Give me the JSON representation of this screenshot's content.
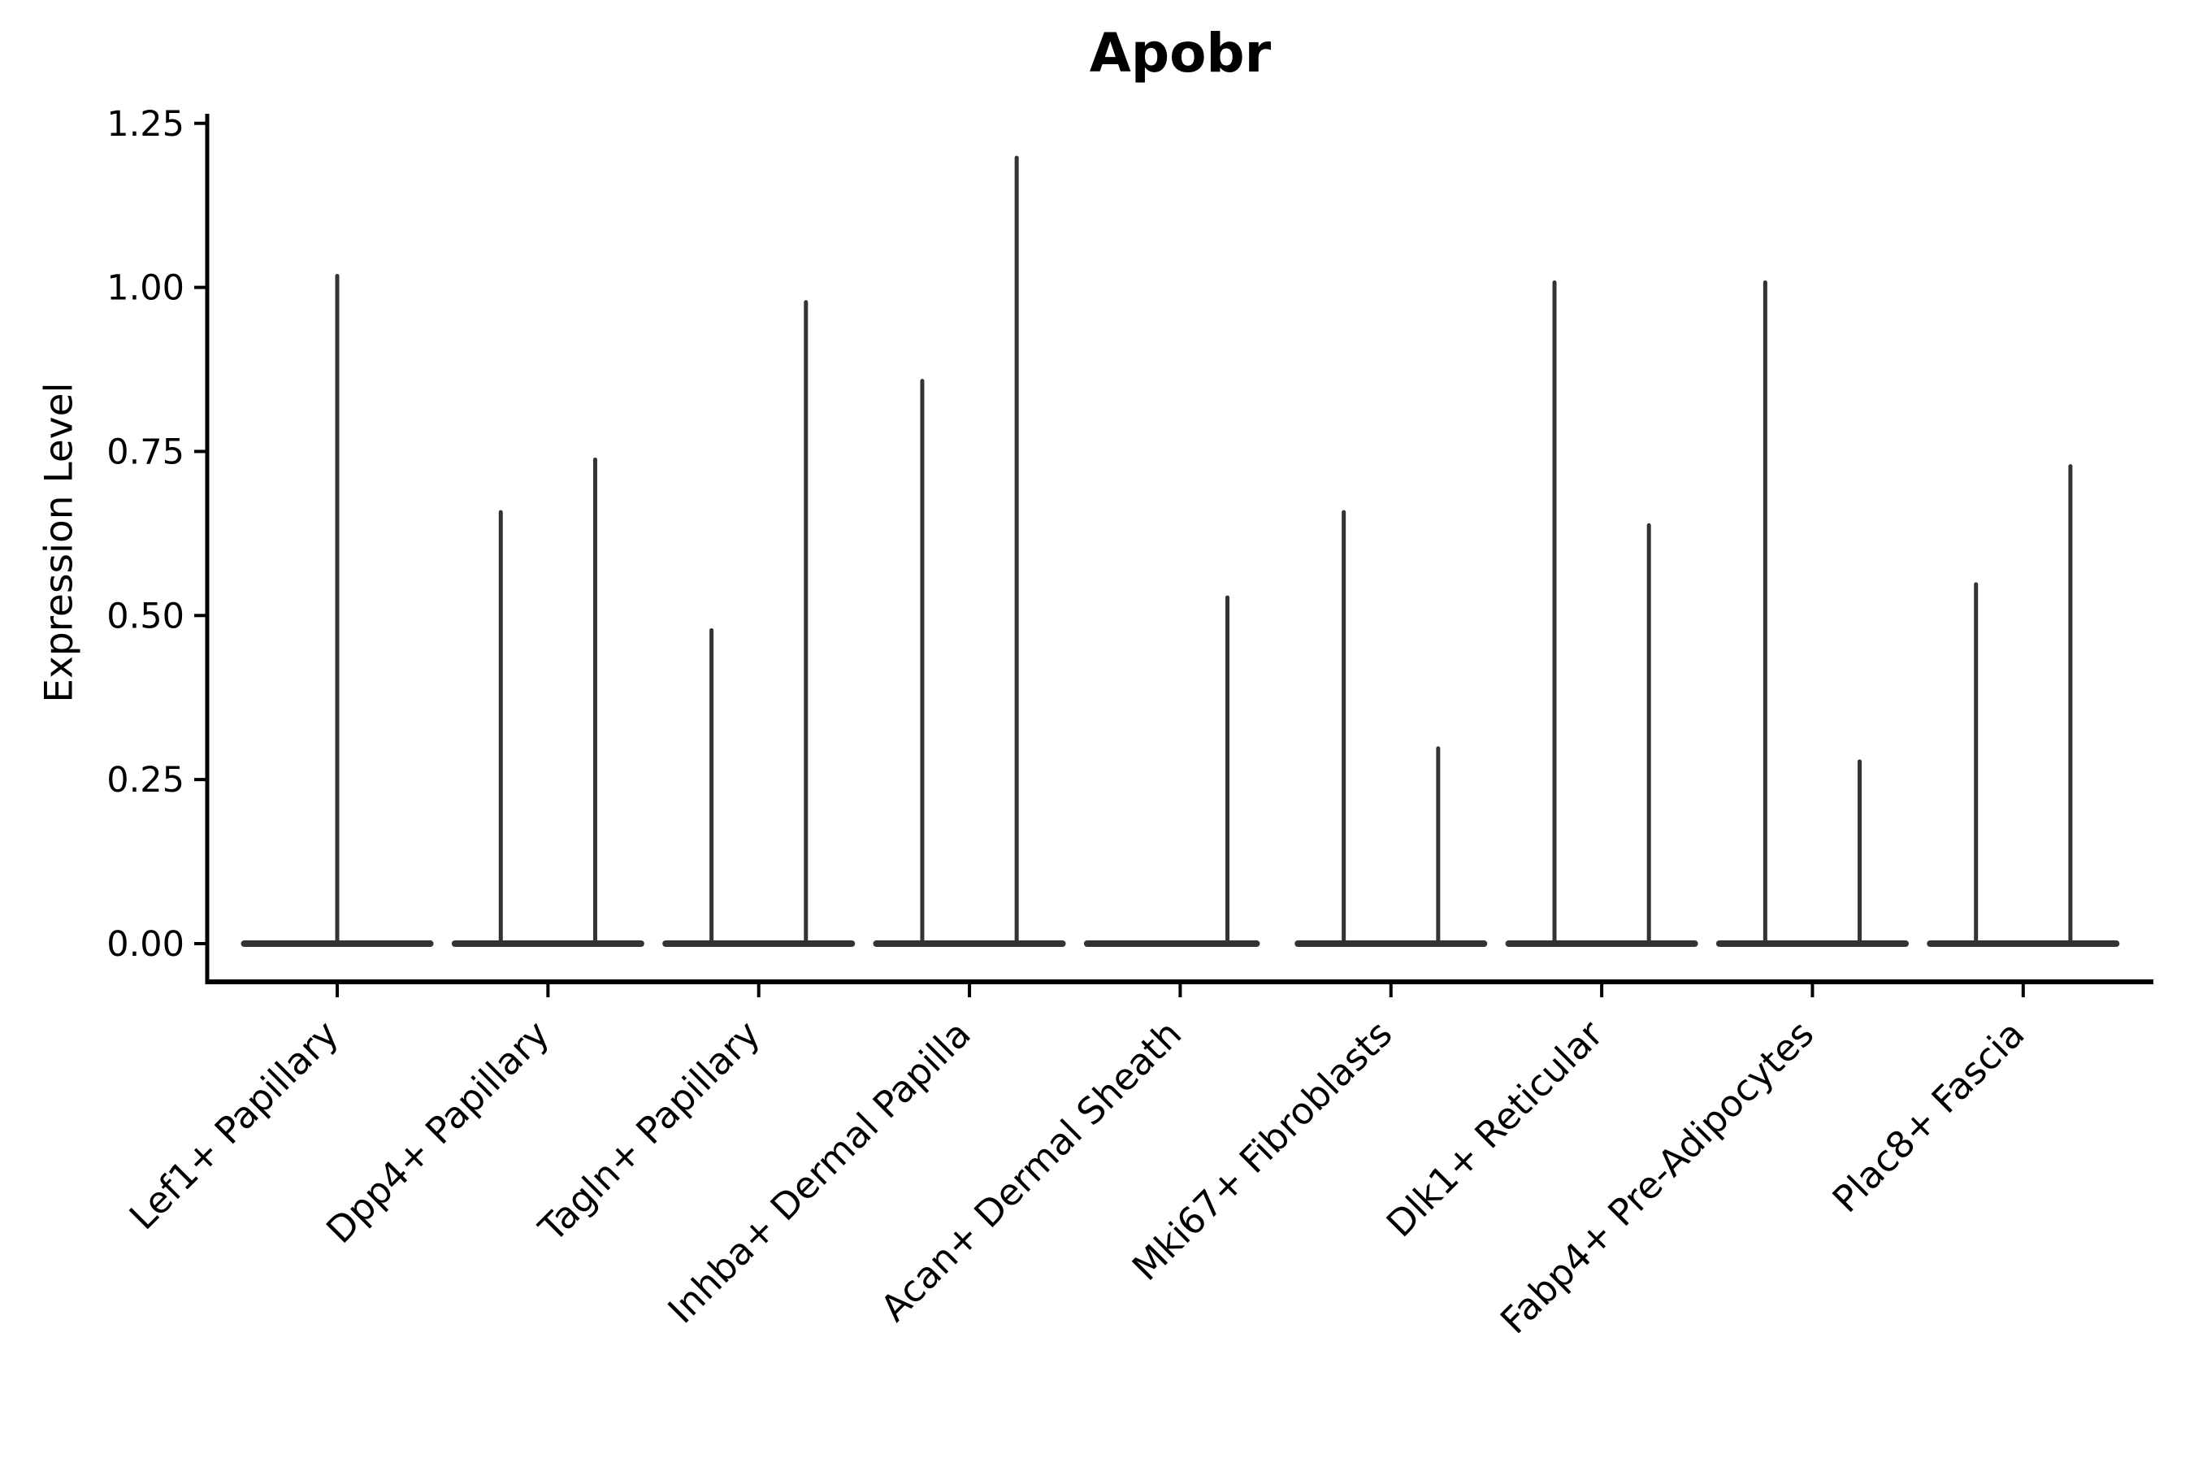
{
  "chart_data": {
    "type": "violin",
    "title": "Apobr",
    "xlabel": "",
    "ylabel": "Expression Level",
    "ylim": [
      -0.06,
      1.26
    ],
    "grid": false,
    "legend": null,
    "yticks": [
      {
        "label": "0.00",
        "value": 0.0
      },
      {
        "label": "0.25",
        "value": 0.25
      },
      {
        "label": "0.50",
        "value": 0.5
      },
      {
        "label": "0.75",
        "value": 0.75
      },
      {
        "label": "1.00",
        "value": 1.0
      },
      {
        "label": "1.25",
        "value": 1.25
      }
    ],
    "categories": [
      "Lef1+ Papillary",
      "Dpp4+ Papillary",
      "Tagln+ Papillary",
      "Inhba+ Dermal Papilla",
      "Acan+ Dermal Sheath",
      "Mki67+ Fibroblasts",
      "Dlk1+ Reticular",
      "Fabp4+ Pre-Adipocytes",
      "Plac8+ Fascia"
    ],
    "violins": [
      {
        "category": "Lef1+ Papillary",
        "baseline_extent": [
          -0.457,
          0.457
        ],
        "spikes": [
          {
            "offset": 0.0,
            "max": 1.02
          }
        ]
      },
      {
        "category": "Dpp4+ Papillary",
        "baseline_extent": [
          -0.457,
          0.457
        ],
        "spikes": [
          {
            "offset": -0.224,
            "max": 0.66
          },
          {
            "offset": 0.224,
            "max": 0.74
          }
        ]
      },
      {
        "category": "Tagln+ Papillary",
        "baseline_extent": [
          -0.457,
          0.457
        ],
        "spikes": [
          {
            "offset": -0.224,
            "max": 0.48
          },
          {
            "offset": 0.224,
            "max": 0.98
          }
        ]
      },
      {
        "category": "Inhba+ Dermal Papilla",
        "baseline_extent": [
          -0.457,
          0.457
        ],
        "spikes": [
          {
            "offset": -0.224,
            "max": 0.86
          },
          {
            "offset": 0.224,
            "max": 1.2
          }
        ]
      },
      {
        "category": "Acan+ Dermal Sheath",
        "baseline_extent": [
          -0.457,
          0.378
        ],
        "spikes": [
          {
            "offset": 0.224,
            "max": 0.53
          }
        ]
      },
      {
        "category": "Mki67+ Fibroblasts",
        "baseline_extent": [
          -0.457,
          0.457
        ],
        "spikes": [
          {
            "offset": -0.224,
            "max": 0.66
          },
          {
            "offset": 0.224,
            "max": 0.3
          }
        ]
      },
      {
        "category": "Dlk1+ Reticular",
        "baseline_extent": [
          -0.457,
          0.457
        ],
        "spikes": [
          {
            "offset": -0.224,
            "max": 1.01
          },
          {
            "offset": 0.224,
            "max": 0.64
          }
        ]
      },
      {
        "category": "Fabp4+ Pre-Adipocytes",
        "baseline_extent": [
          -0.457,
          0.457
        ],
        "spikes": [
          {
            "offset": -0.224,
            "max": 1.01
          },
          {
            "offset": 0.224,
            "max": 0.28
          }
        ]
      },
      {
        "category": "Plac8+ Fascia",
        "baseline_extent": [
          -0.457,
          0.457
        ],
        "spikes": [
          {
            "offset": -0.224,
            "max": 0.55
          },
          {
            "offset": 0.224,
            "max": 0.73
          }
        ]
      }
    ],
    "colors": {
      "violin": "#333333",
      "axis": "#000000",
      "text": "#000000",
      "background": "#ffffff"
    }
  }
}
